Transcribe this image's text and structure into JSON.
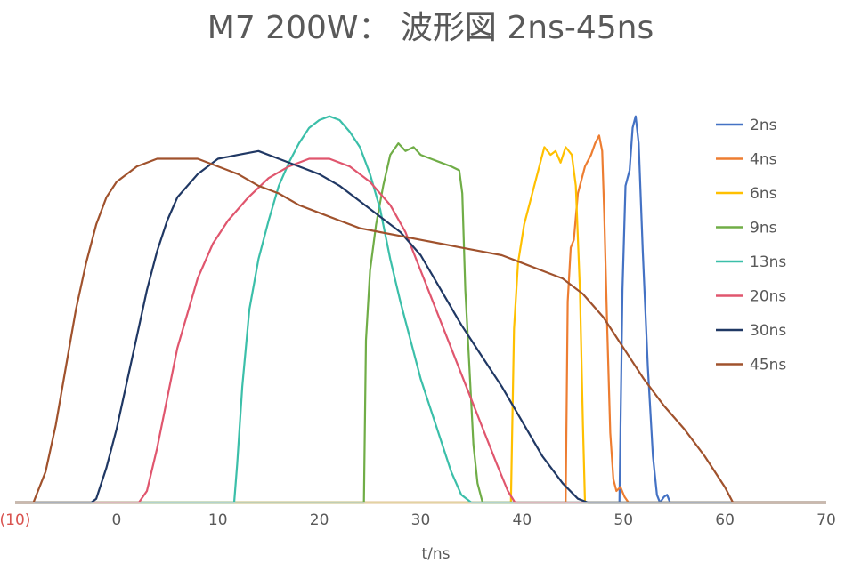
{
  "chart_data": {
    "type": "line",
    "title": "M7 200W： 波形図  2ns-45ns",
    "xlabel": "t/ns",
    "ylabel": "",
    "xlim": [
      -10,
      70
    ],
    "x_ticks": [
      {
        "value": -10,
        "label": "(10)",
        "negative": true
      },
      {
        "value": 0,
        "label": "0"
      },
      {
        "value": 10,
        "label": "10"
      },
      {
        "value": 20,
        "label": "20"
      },
      {
        "value": 30,
        "label": "30"
      },
      {
        "value": 40,
        "label": "40"
      },
      {
        "value": 50,
        "label": "50"
      },
      {
        "value": 60,
        "label": "60"
      },
      {
        "value": 70,
        "label": "70"
      }
    ],
    "ylim": [
      0,
      1.02
    ],
    "grid": false,
    "legend_position": "right",
    "series": [
      {
        "name": "2ns",
        "color": "#4472C4",
        "points": [
          [
            -10,
            0
          ],
          [
            49.6,
            0
          ],
          [
            49.9,
            0.55
          ],
          [
            50.2,
            0.82
          ],
          [
            50.6,
            0.86
          ],
          [
            50.9,
            0.97
          ],
          [
            51.2,
            1.0
          ],
          [
            51.5,
            0.93
          ],
          [
            51.9,
            0.65
          ],
          [
            52.4,
            0.35
          ],
          [
            52.9,
            0.12
          ],
          [
            53.3,
            0.02
          ],
          [
            53.6,
            0.0
          ],
          [
            54.0,
            0.015
          ],
          [
            54.3,
            0.02
          ],
          [
            54.6,
            0.0
          ],
          [
            70,
            0
          ]
        ]
      },
      {
        "name": "4ns",
        "color": "#ED7D31",
        "points": [
          [
            -10,
            0
          ],
          [
            44.3,
            0
          ],
          [
            44.5,
            0.52
          ],
          [
            44.8,
            0.66
          ],
          [
            45.1,
            0.68
          ],
          [
            45.5,
            0.8
          ],
          [
            46.2,
            0.87
          ],
          [
            46.8,
            0.9
          ],
          [
            47.2,
            0.93
          ],
          [
            47.6,
            0.95
          ],
          [
            47.9,
            0.91
          ],
          [
            48.1,
            0.75
          ],
          [
            48.4,
            0.45
          ],
          [
            48.7,
            0.18
          ],
          [
            49.0,
            0.06
          ],
          [
            49.3,
            0.03
          ],
          [
            49.7,
            0.04
          ],
          [
            50.1,
            0.015
          ],
          [
            50.5,
            0.0
          ],
          [
            70,
            0
          ]
        ]
      },
      {
        "name": "6ns",
        "color": "#FFC000",
        "points": [
          [
            -10,
            0
          ],
          [
            38.9,
            0
          ],
          [
            39.2,
            0.45
          ],
          [
            39.6,
            0.62
          ],
          [
            40.2,
            0.72
          ],
          [
            41.0,
            0.8
          ],
          [
            41.7,
            0.87
          ],
          [
            42.2,
            0.92
          ],
          [
            42.8,
            0.9
          ],
          [
            43.3,
            0.91
          ],
          [
            43.8,
            0.88
          ],
          [
            44.3,
            0.92
          ],
          [
            44.9,
            0.9
          ],
          [
            45.3,
            0.82
          ],
          [
            45.7,
            0.55
          ],
          [
            46.0,
            0.2
          ],
          [
            46.2,
            0.0
          ],
          [
            70,
            0
          ]
        ]
      },
      {
        "name": "9ns",
        "color": "#70AD47",
        "points": [
          [
            -10,
            0
          ],
          [
            24.4,
            0
          ],
          [
            24.6,
            0.42
          ],
          [
            25.0,
            0.6
          ],
          [
            25.6,
            0.72
          ],
          [
            26.3,
            0.82
          ],
          [
            27.0,
            0.9
          ],
          [
            27.8,
            0.93
          ],
          [
            28.5,
            0.91
          ],
          [
            29.3,
            0.92
          ],
          [
            30.0,
            0.9
          ],
          [
            31.0,
            0.89
          ],
          [
            32.0,
            0.88
          ],
          [
            33.0,
            0.87
          ],
          [
            33.8,
            0.86
          ],
          [
            34.1,
            0.8
          ],
          [
            34.4,
            0.55
          ],
          [
            34.8,
            0.35
          ],
          [
            35.2,
            0.15
          ],
          [
            35.6,
            0.05
          ],
          [
            36.1,
            0.0
          ],
          [
            70,
            0
          ]
        ]
      },
      {
        "name": "13ns",
        "color": "#3BBFA9",
        "points": [
          [
            -10,
            0
          ],
          [
            11.6,
            0
          ],
          [
            11.9,
            0.1
          ],
          [
            12.4,
            0.3
          ],
          [
            13.1,
            0.5
          ],
          [
            14.0,
            0.63
          ],
          [
            15.0,
            0.73
          ],
          [
            16.0,
            0.82
          ],
          [
            17.0,
            0.88
          ],
          [
            18.0,
            0.93
          ],
          [
            19.0,
            0.97
          ],
          [
            20.0,
            0.99
          ],
          [
            21.0,
            1.0
          ],
          [
            22.0,
            0.99
          ],
          [
            23.0,
            0.96
          ],
          [
            24.0,
            0.92
          ],
          [
            25.0,
            0.85
          ],
          [
            26.0,
            0.76
          ],
          [
            27.0,
            0.63
          ],
          [
            28.0,
            0.52
          ],
          [
            29.0,
            0.42
          ],
          [
            30.0,
            0.32
          ],
          [
            31.0,
            0.24
          ],
          [
            32.0,
            0.16
          ],
          [
            33.0,
            0.08
          ],
          [
            34.0,
            0.02
          ],
          [
            35.0,
            0.0
          ],
          [
            70,
            0
          ]
        ]
      },
      {
        "name": "20ns",
        "color": "#E0566E",
        "points": [
          [
            -10,
            0
          ],
          [
            2.2,
            0
          ],
          [
            3.0,
            0.03
          ],
          [
            4.0,
            0.14
          ],
          [
            5.0,
            0.27
          ],
          [
            6.0,
            0.4
          ],
          [
            7.0,
            0.49
          ],
          [
            8.0,
            0.58
          ],
          [
            9.5,
            0.67
          ],
          [
            11.0,
            0.73
          ],
          [
            13.0,
            0.79
          ],
          [
            15.0,
            0.84
          ],
          [
            17.0,
            0.87
          ],
          [
            19.0,
            0.89
          ],
          [
            21.0,
            0.89
          ],
          [
            23.0,
            0.87
          ],
          [
            25.0,
            0.83
          ],
          [
            27.0,
            0.77
          ],
          [
            28.5,
            0.7
          ],
          [
            30.0,
            0.6
          ],
          [
            31.5,
            0.5
          ],
          [
            33.0,
            0.4
          ],
          [
            34.5,
            0.3
          ],
          [
            36.0,
            0.2
          ],
          [
            37.5,
            0.1
          ],
          [
            38.6,
            0.03
          ],
          [
            39.3,
            0.0
          ],
          [
            70,
            0
          ]
        ]
      },
      {
        "name": "30ns",
        "color": "#203864",
        "points": [
          [
            -10,
            0
          ],
          [
            -2.5,
            0
          ],
          [
            -2.0,
            0.01
          ],
          [
            -1.0,
            0.09
          ],
          [
            0.0,
            0.19
          ],
          [
            1.0,
            0.31
          ],
          [
            2.0,
            0.43
          ],
          [
            3.0,
            0.55
          ],
          [
            4.0,
            0.65
          ],
          [
            5.0,
            0.73
          ],
          [
            6.0,
            0.79
          ],
          [
            8.0,
            0.85
          ],
          [
            10.0,
            0.89
          ],
          [
            12.0,
            0.9
          ],
          [
            14.0,
            0.91
          ],
          [
            16.0,
            0.89
          ],
          [
            18.0,
            0.87
          ],
          [
            20.0,
            0.85
          ],
          [
            22.0,
            0.82
          ],
          [
            24.0,
            0.78
          ],
          [
            26.0,
            0.74
          ],
          [
            28.0,
            0.7
          ],
          [
            30.0,
            0.64
          ],
          [
            32.0,
            0.55
          ],
          [
            34.0,
            0.46
          ],
          [
            36.0,
            0.38
          ],
          [
            38.0,
            0.3
          ],
          [
            40.0,
            0.21
          ],
          [
            42.0,
            0.12
          ],
          [
            44.0,
            0.05
          ],
          [
            45.5,
            0.01
          ],
          [
            46.5,
            0.0
          ],
          [
            70,
            0
          ]
        ]
      },
      {
        "name": "45ns",
        "color": "#A0522D",
        "points": [
          [
            -10,
            0
          ],
          [
            -8.2,
            0
          ],
          [
            -7.0,
            0.08
          ],
          [
            -6.0,
            0.2
          ],
          [
            -5.0,
            0.35
          ],
          [
            -4.0,
            0.5
          ],
          [
            -3.0,
            0.62
          ],
          [
            -2.0,
            0.72
          ],
          [
            -1.0,
            0.79
          ],
          [
            0.0,
            0.83
          ],
          [
            2.0,
            0.87
          ],
          [
            4.0,
            0.89
          ],
          [
            6.0,
            0.89
          ],
          [
            8.0,
            0.89
          ],
          [
            10.0,
            0.87
          ],
          [
            12.0,
            0.85
          ],
          [
            14.0,
            0.82
          ],
          [
            16.0,
            0.8
          ],
          [
            18.0,
            0.77
          ],
          [
            20.0,
            0.75
          ],
          [
            22.0,
            0.73
          ],
          [
            24.0,
            0.71
          ],
          [
            26.0,
            0.7
          ],
          [
            28.0,
            0.69
          ],
          [
            30.0,
            0.68
          ],
          [
            32.0,
            0.67
          ],
          [
            34.0,
            0.66
          ],
          [
            36.0,
            0.65
          ],
          [
            38.0,
            0.64
          ],
          [
            40.0,
            0.62
          ],
          [
            42.0,
            0.6
          ],
          [
            44.0,
            0.58
          ],
          [
            46.0,
            0.54
          ],
          [
            48.0,
            0.48
          ],
          [
            50.0,
            0.4
          ],
          [
            52.0,
            0.32
          ],
          [
            54.0,
            0.25
          ],
          [
            56.0,
            0.19
          ],
          [
            58.0,
            0.12
          ],
          [
            60.0,
            0.04
          ],
          [
            60.8,
            0.0
          ],
          [
            70,
            0
          ]
        ]
      }
    ]
  }
}
